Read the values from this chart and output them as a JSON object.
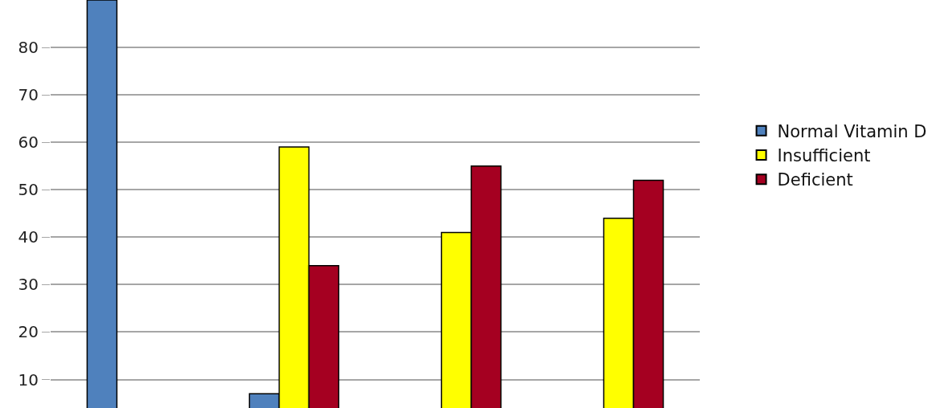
{
  "chart_data": {
    "type": "bar",
    "categories": [
      null,
      null,
      null,
      null
    ],
    "series": [
      {
        "name": "Normal Vitamin D",
        "color": "#4f81bd",
        "values": [
          90,
          7,
          null,
          null
        ]
      },
      {
        "name": "Insufficient",
        "color": "#ffff00",
        "values": [
          null,
          59,
          41,
          44
        ]
      },
      {
        "name": "Deficient",
        "color": "#a50021",
        "values": [
          null,
          34,
          55,
          52
        ]
      }
    ],
    "ylim": [
      4,
      90
    ],
    "yticks": [
      10,
      20,
      30,
      40,
      50,
      60,
      70,
      80
    ],
    "grid": "y",
    "legend": "right"
  }
}
